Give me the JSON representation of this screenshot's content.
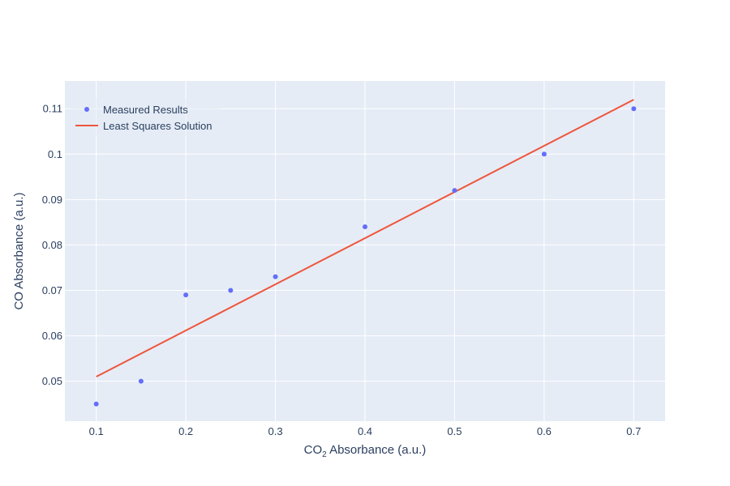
{
  "chart_data": {
    "type": "scatter",
    "xlabel": {
      "prefix": "CO",
      "sub": "2",
      "suffix": " Absorbance (a.u.)"
    },
    "ylabel": "CO Absorbance (a.u.)",
    "xlim": [
      0.065,
      0.735
    ],
    "ylim": [
      0.0412,
      0.1161
    ],
    "xticks": [
      0.1,
      0.2,
      0.3,
      0.4,
      0.5,
      0.6,
      0.7
    ],
    "xtick_labels": [
      "0.1",
      "0.2",
      "0.3",
      "0.4",
      "0.5",
      "0.6",
      "0.7"
    ],
    "yticks": [
      0.05,
      0.06,
      0.07,
      0.08,
      0.09,
      0.1,
      0.11
    ],
    "ytick_labels": [
      "0.05",
      "0.06",
      "0.07",
      "0.08",
      "0.09",
      "0.1",
      "0.11"
    ],
    "grid": true,
    "legend_position": "top-left",
    "series": [
      {
        "name": "Measured Results",
        "mode": "markers",
        "color": "#636efa",
        "x": [
          0.1,
          0.15,
          0.2,
          0.25,
          0.3,
          0.4,
          0.5,
          0.6,
          0.7
        ],
        "y": [
          0.045,
          0.05,
          0.069,
          0.07,
          0.073,
          0.084,
          0.092,
          0.1,
          0.11
        ]
      },
      {
        "name": "Least Squares Solution",
        "mode": "lines",
        "color": "#ef553b",
        "x": [
          0.1,
          0.7
        ],
        "y": [
          0.051,
          0.112
        ]
      }
    ],
    "colors": {
      "plot_bg": "#e5ecf6",
      "grid": "#ffffff",
      "text": "#2a3f5f"
    }
  }
}
